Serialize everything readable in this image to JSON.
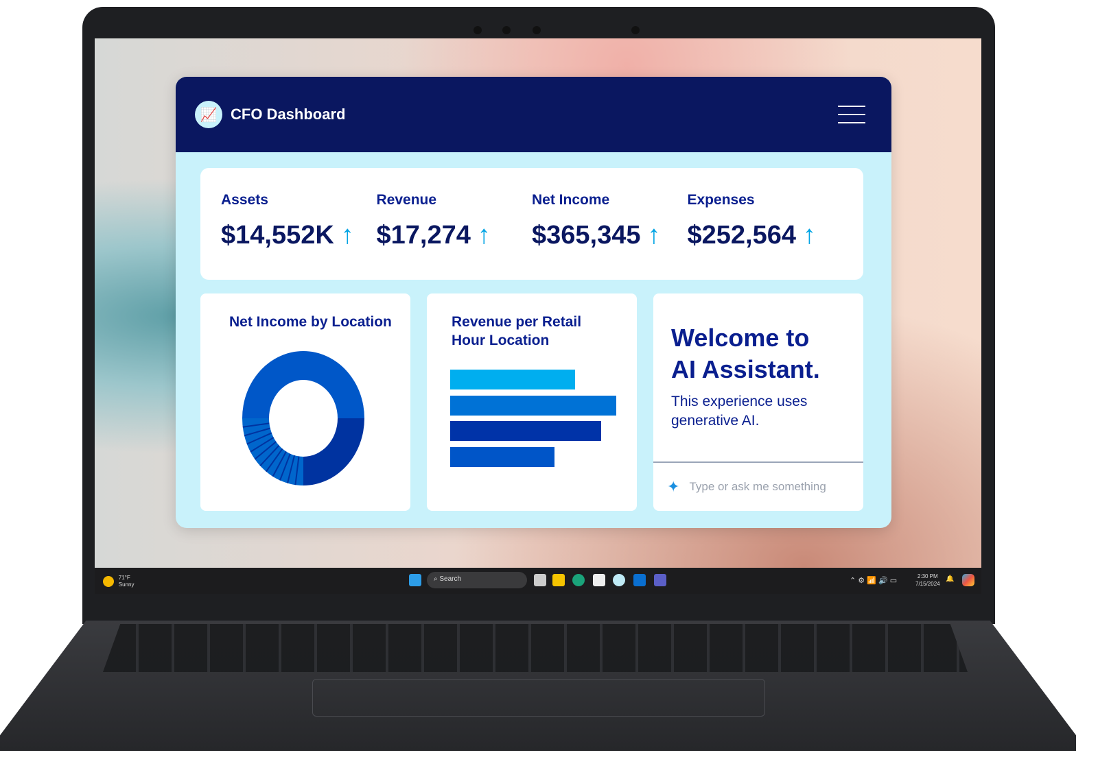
{
  "app": {
    "title": "CFO Dashboard",
    "logo_icon": "chart-icon",
    "menu_icon": "hamburger-icon"
  },
  "kpis": [
    {
      "label": "Assets",
      "value": "$14,552K",
      "trend": "up"
    },
    {
      "label": "Revenue",
      "value": "$17,274",
      "trend": "up"
    },
    {
      "label": "Net Income",
      "value": "$365,345",
      "trend": "up"
    },
    {
      "label": "Expenses",
      "value": "$252,564",
      "trend": "up"
    }
  ],
  "arrow": "↑",
  "net_income_card": {
    "title": "Net Income by Location"
  },
  "revenue_card": {
    "title_line1": "Revenue per Retail",
    "title_line2": "Hour Location"
  },
  "chart_data": [
    {
      "type": "pie",
      "title": "Net Income by Location",
      "values": [
        50,
        25,
        25
      ],
      "colors": [
        "#0057c8",
        "#0033a0",
        "#0066cc"
      ]
    },
    {
      "type": "bar",
      "title": "Revenue per Retail Hour Location",
      "orientation": "horizontal",
      "values": [
        75,
        100,
        91,
        63
      ],
      "colors": [
        "#00aeef",
        "#0072d6",
        "#0033a8",
        "#0055c8"
      ]
    }
  ],
  "assistant": {
    "title_line1": "Welcome to",
    "title_line2": "AI Assistant.",
    "subtitle_line1": "This experience uses",
    "subtitle_line2": "generative AI.",
    "input_placeholder": "Type or ask me something",
    "sparkle_icon": "sparkle-icon"
  },
  "taskbar": {
    "weather_temp": "71°F",
    "weather_desc": "Sunny",
    "search_label": "Search",
    "time": "2:30 PM",
    "date": "7/15/2024"
  }
}
